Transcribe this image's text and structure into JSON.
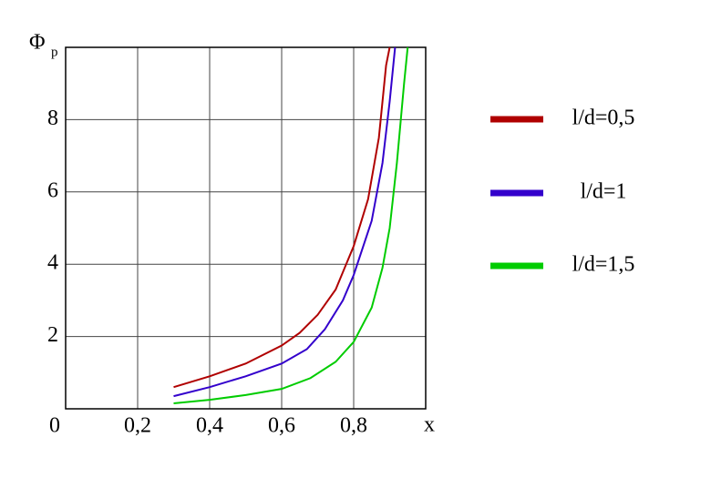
{
  "chart_data": {
    "type": "line",
    "ylabel": "Φ",
    "ylabel_subscript": "p",
    "xlabel": "x",
    "xlim": [
      0,
      1
    ],
    "ylim": [
      0,
      10
    ],
    "xticks": [
      0,
      {
        "value": 0.2,
        "label": "0,2"
      },
      {
        "value": 0.4,
        "label": "0,4"
      },
      {
        "value": 0.6,
        "label": "0,6"
      },
      {
        "value": 0.8,
        "label": "0,8"
      }
    ],
    "yticks": [
      2,
      4,
      6,
      8
    ],
    "grid": true,
    "series": [
      {
        "name": "l/d=0,5",
        "color": "#b00000",
        "x": [
          0.3,
          0.4,
          0.5,
          0.6,
          0.65,
          0.7,
          0.75,
          0.8,
          0.84,
          0.87,
          0.89,
          0.9
        ],
        "values": [
          0.6,
          0.9,
          1.25,
          1.75,
          2.1,
          2.6,
          3.3,
          4.5,
          5.8,
          7.5,
          9.5,
          10
        ]
      },
      {
        "name": "l/d=1",
        "color": "#3300cc",
        "x": [
          0.3,
          0.4,
          0.5,
          0.6,
          0.67,
          0.72,
          0.77,
          0.8,
          0.85,
          0.88,
          0.9,
          0.915
        ],
        "values": [
          0.35,
          0.6,
          0.9,
          1.25,
          1.65,
          2.2,
          3.0,
          3.7,
          5.2,
          6.8,
          8.5,
          10
        ]
      },
      {
        "name": "l/d=1,5",
        "color": "#00cc00",
        "x": [
          0.3,
          0.4,
          0.5,
          0.6,
          0.68,
          0.75,
          0.8,
          0.85,
          0.88,
          0.9,
          0.92,
          0.94,
          0.95
        ],
        "values": [
          0.15,
          0.25,
          0.38,
          0.55,
          0.85,
          1.3,
          1.85,
          2.8,
          3.9,
          5.0,
          6.8,
          9.0,
          10
        ]
      }
    ]
  }
}
